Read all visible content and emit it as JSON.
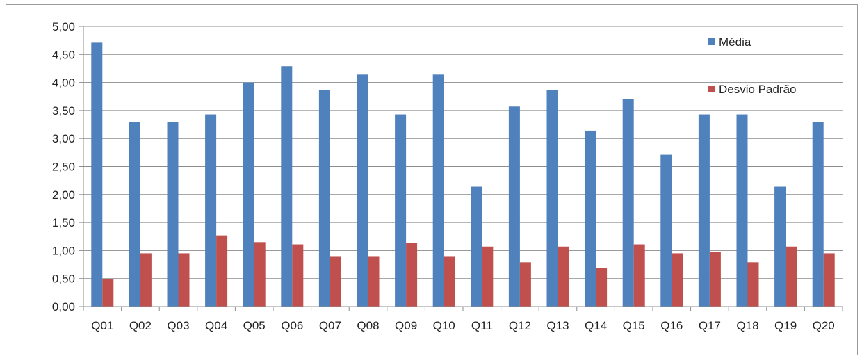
{
  "chart_data": {
    "type": "bar",
    "categories": [
      "Q01",
      "Q02",
      "Q03",
      "Q04",
      "Q05",
      "Q06",
      "Q07",
      "Q08",
      "Q09",
      "Q10",
      "Q11",
      "Q12",
      "Q13",
      "Q14",
      "Q15",
      "Q16",
      "Q17",
      "Q18",
      "Q19",
      "Q20"
    ],
    "series": [
      {
        "name": "Média",
        "color": "#4F81BD",
        "values": [
          4.71,
          3.29,
          3.29,
          3.43,
          4.0,
          4.29,
          3.86,
          4.14,
          3.43,
          4.14,
          2.14,
          3.57,
          3.86,
          3.14,
          3.71,
          2.71,
          3.43,
          3.43,
          2.14,
          3.29
        ]
      },
      {
        "name": "Desvio Padrão",
        "color": "#C0504D",
        "values": [
          0.49,
          0.95,
          0.95,
          1.27,
          1.15,
          1.11,
          0.9,
          0.9,
          1.13,
          0.9,
          1.07,
          0.79,
          1.07,
          0.69,
          1.11,
          0.95,
          0.98,
          0.79,
          1.07,
          0.95
        ]
      }
    ],
    "ylim": [
      0,
      5
    ],
    "yticks": [
      "0,00",
      "0,50",
      "1,00",
      "1,50",
      "2,00",
      "2,50",
      "3,00",
      "3,50",
      "4,00",
      "4,50",
      "5,00"
    ],
    "ytick_values": [
      0,
      0.5,
      1,
      1.5,
      2,
      2.5,
      3,
      3.5,
      4,
      4.5,
      5
    ],
    "grid": true,
    "legend_position": "top-right",
    "title": "",
    "xlabel": "",
    "ylabel": ""
  }
}
